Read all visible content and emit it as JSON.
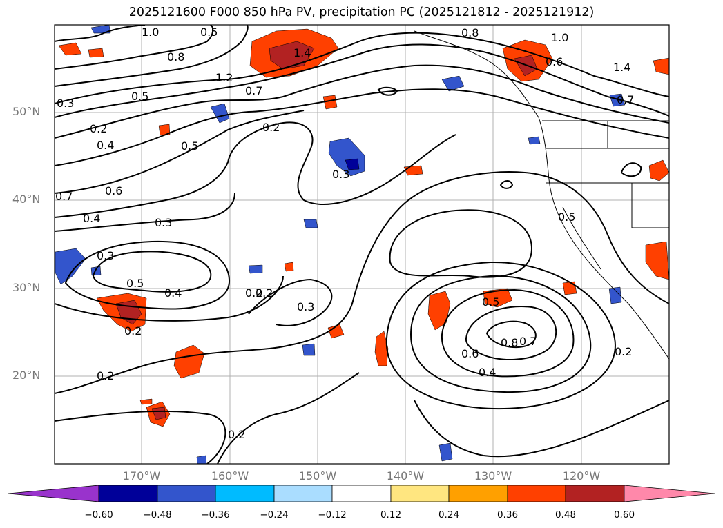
{
  "title": "2025121600 F000 850 hPa PV, precipitation PC (2025121812 - 2025121912)",
  "lat_labels": [
    "50°N",
    "40°N",
    "30°N",
    "20°N"
  ],
  "lon_labels": [
    "170°W",
    "160°W",
    "150°W",
    "140°W",
    "130°W",
    "120°W"
  ],
  "colorbar": {
    "ticks": [
      "−0.60",
      "−0.48",
      "−0.36",
      "−0.24",
      "−0.12",
      "0.12",
      "0.24",
      "0.36",
      "0.48",
      "0.60"
    ],
    "colors": [
      "#9933cc",
      "#000099",
      "#3355cc",
      "#00bbff",
      "#aaddff",
      "#ffffff",
      "#ffe680",
      "#ffa000",
      "#ff4000",
      "#b22222",
      "#ff88aa"
    ]
  },
  "contour_labels": [
    "1.0",
    "0.8",
    "0.5",
    "0.3",
    "0.2",
    "0.4",
    "0.6",
    "0.7",
    "0.5",
    "0.3",
    "0.4",
    "0.3",
    "0.2",
    "0.3",
    "0.5",
    "0.4",
    "0.2",
    "0.2",
    "0.2",
    "0.2",
    "0.5",
    "0.2",
    "0.3",
    "0.5",
    "0.6",
    "0.4",
    "0.8",
    "0.7",
    "0.2",
    "1.4",
    "0.7",
    "0.8",
    "1.0",
    "0.6",
    "1.2",
    "0.5",
    "0.7",
    "1.4"
  ]
}
